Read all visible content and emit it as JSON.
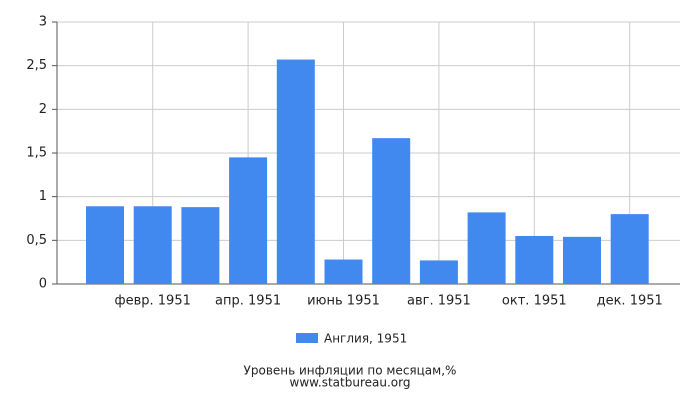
{
  "chart_data": {
    "type": "bar",
    "title": "Уровень инфляции по месяцам,%",
    "source": "www.statbureau.org",
    "categories": [
      null,
      "февр. 1951",
      null,
      "апр. 1951",
      null,
      "июнь 1951",
      null,
      "авг. 1951",
      null,
      "окт. 1951",
      null,
      "дек. 1951"
    ],
    "series": [
      {
        "name": "Англия, 1951",
        "color": "#4189ee",
        "values": [
          0.89,
          0.89,
          0.88,
          1.45,
          2.57,
          0.28,
          1.67,
          0.27,
          0.82,
          0.55,
          0.54,
          0.8
        ]
      }
    ],
    "ylim": [
      0,
      3
    ],
    "yticks": [
      0,
      {
        "value": 0.5,
        "label": "0,5"
      },
      1,
      {
        "value": 1.5,
        "label": "1,5"
      },
      2,
      {
        "value": 2.5,
        "label": "2,5"
      },
      3
    ],
    "grid": true
  }
}
